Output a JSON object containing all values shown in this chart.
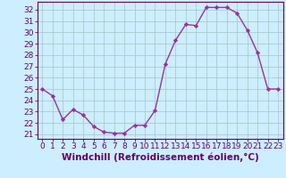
{
  "x": [
    0,
    1,
    2,
    3,
    4,
    5,
    6,
    7,
    8,
    9,
    10,
    11,
    12,
    13,
    14,
    15,
    16,
    17,
    18,
    19,
    20,
    21,
    22,
    23
  ],
  "y": [
    25.0,
    24.4,
    22.3,
    23.2,
    22.7,
    21.7,
    21.2,
    21.1,
    21.1,
    21.8,
    21.8,
    23.1,
    27.2,
    29.3,
    30.7,
    30.6,
    32.2,
    32.2,
    32.2,
    31.7,
    30.2,
    28.2,
    25.0,
    25.0
  ],
  "line_color": "#993399",
  "marker": "D",
  "marker_size": 2.2,
  "bg_color": "#cceeff",
  "grid_color": "#aacccc",
  "xlabel": "Windchill (Refroidissement éolien,°C)",
  "xlabel_fontsize": 7.5,
  "ytick_labels": [
    "21",
    "22",
    "23",
    "24",
    "25",
    "26",
    "27",
    "28",
    "29",
    "30",
    "31",
    "32"
  ],
  "ytick_values": [
    21,
    22,
    23,
    24,
    25,
    26,
    27,
    28,
    29,
    30,
    31,
    32
  ],
  "ylim": [
    20.6,
    32.7
  ],
  "xlim": [
    -0.5,
    23.5
  ],
  "xtick_values": [
    0,
    1,
    2,
    3,
    4,
    5,
    6,
    7,
    8,
    9,
    10,
    11,
    12,
    13,
    14,
    15,
    16,
    17,
    18,
    19,
    20,
    21,
    22,
    23
  ],
  "tick_fontsize": 6.5,
  "linewidth": 1.0,
  "axis_color": "#660066",
  "spine_color": "#660066"
}
